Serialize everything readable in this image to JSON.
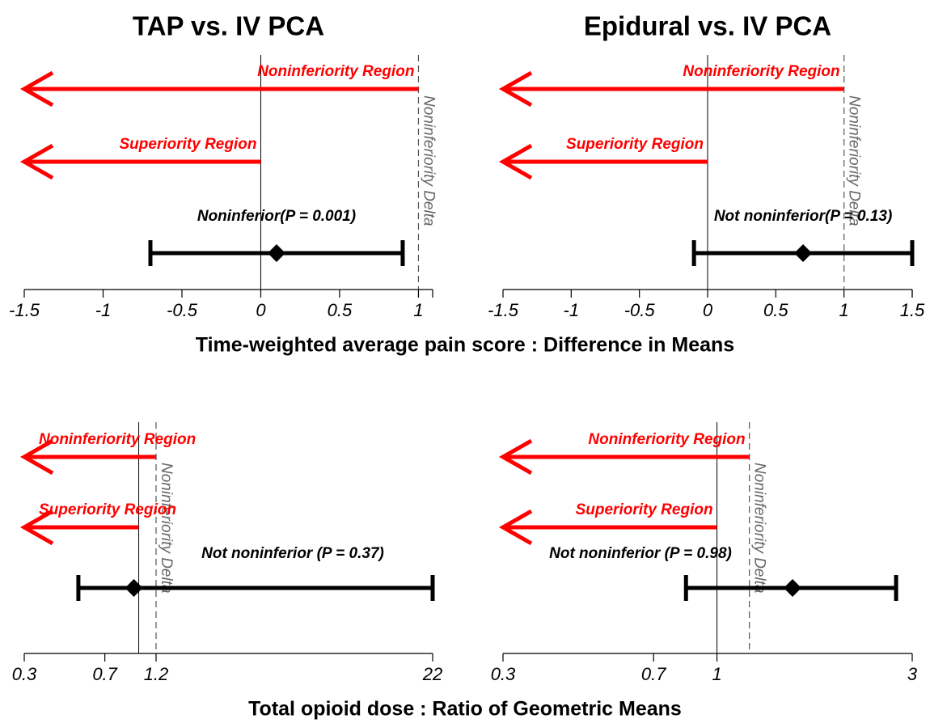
{
  "chart_data": [
    {
      "type": "interval",
      "title": "TAP vs. IV PCA",
      "xlabel": "Time-weighted average pain score : Difference in Means",
      "log": false,
      "xlim": [
        -1.5,
        1.09
      ],
      "xticks": [
        -1.5,
        -1,
        -0.5,
        0,
        0.5,
        1
      ],
      "null_value": 0,
      "delta": 1,
      "estimate": 0.1,
      "lower": -0.7,
      "upper": 0.9,
      "noninferiority_label": "Noninferiority Region",
      "superiority_label": "Superiority Region",
      "delta_label": "Noninferiority Delta",
      "result": "Noninferior(P = 0.001)",
      "region_color": "#ff0000"
    },
    {
      "type": "interval",
      "title": "Epidural vs. IV PCA",
      "log": false,
      "xlim": [
        -1.5,
        1.5
      ],
      "xticks": [
        -1.5,
        -1,
        -0.5,
        0,
        0.5,
        1,
        1.5
      ],
      "null_value": 0,
      "delta": 1,
      "estimate": 0.7,
      "lower": -0.1,
      "upper": 1.5,
      "noninferiority_label": "Noninferiority Region",
      "superiority_label": "Superiority Region",
      "delta_label": "Noninferiority Delta",
      "result": "Not noninferior(P = 0.13)",
      "region_color": "#ff0000"
    },
    {
      "type": "interval",
      "xlabel": "Total opioid dose : Ratio of Geometric Means",
      "log": true,
      "xlim": [
        0.3,
        22
      ],
      "xticks": [
        0.3,
        0.7,
        1.2,
        22
      ],
      "null_value": 1,
      "delta": 1.2,
      "estimate": 0.95,
      "lower": 0.53,
      "upper": 22,
      "noninferiority_label": "Noninferiority Region",
      "superiority_label": "Superiority Region",
      "delta_label": "Noninferiority Delta",
      "result": "Not noninferior (P = 0.37)",
      "region_color": "#ff0000"
    },
    {
      "type": "interval",
      "log": true,
      "xlim": [
        0.3,
        3
      ],
      "xticks": [
        0.3,
        0.7,
        1,
        3
      ],
      "null_value": 1,
      "delta": 1.2,
      "estimate": 1.53,
      "lower": 0.84,
      "upper": 2.74,
      "noninferiority_label": "Noninferiority Region",
      "superiority_label": "Superiority Region",
      "delta_label": "Noninferiority Delta",
      "result": "Not noninferior (P = 0.98)",
      "region_color": "#ff0000"
    }
  ]
}
